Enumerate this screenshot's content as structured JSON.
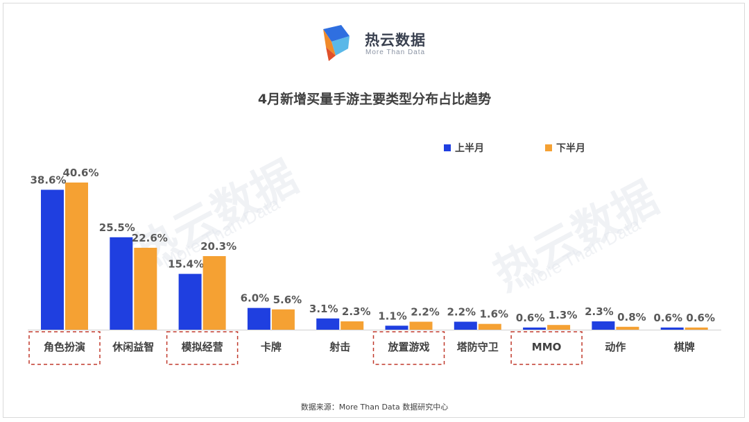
{
  "brand": {
    "name": "热云数据",
    "tagline": "More Than Data"
  },
  "chart_data": {
    "type": "bar",
    "title": "4月新增买量手游主要类型分布占比趋势",
    "categories": [
      "角色扮演",
      "休闲益智",
      "模拟经营",
      "卡牌",
      "射击",
      "放置游戏",
      "塔防守卫",
      "MMO",
      "动作",
      "棋牌"
    ],
    "series": [
      {
        "name": "上半月",
        "color": "#1f3fe0",
        "values": [
          38.6,
          25.5,
          15.4,
          6.0,
          3.1,
          1.1,
          2.2,
          0.6,
          2.3,
          0.6
        ]
      },
      {
        "name": "下半月",
        "color": "#f5a133",
        "values": [
          40.6,
          22.6,
          20.3,
          5.6,
          2.3,
          2.2,
          1.6,
          1.3,
          0.8,
          0.6
        ]
      }
    ],
    "highlighted_categories": [
      "角色扮演",
      "模拟经营",
      "放置游戏",
      "MMO"
    ],
    "value_suffix": "%",
    "ylim": [
      0,
      45
    ],
    "legend_position": "top-right",
    "grid": false
  },
  "source_note": "数据来源：More Than Data 数据研究中心"
}
